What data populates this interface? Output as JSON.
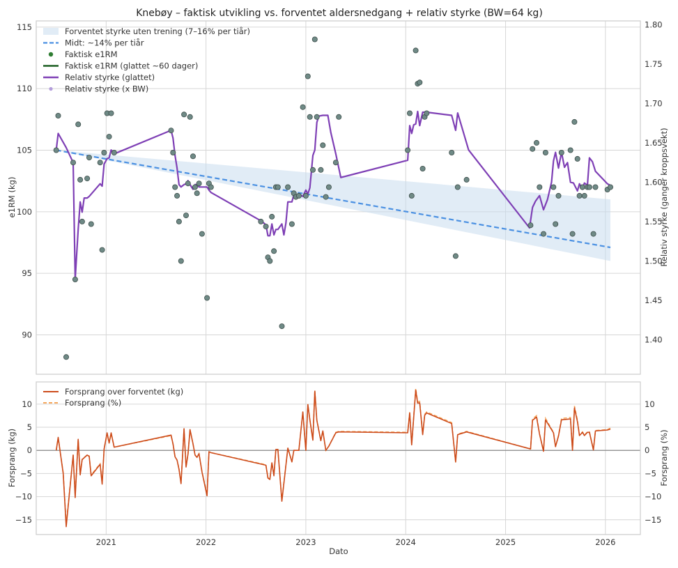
{
  "title": "Knebøy – faktisk utvikling vs. forventet aldersnedgang + relativ styrke (BW=64 kg)",
  "chart_data": [
    {
      "type": "line",
      "panel": "top",
      "xlabel": "",
      "ylabel": "e1RM (kg)",
      "ylabel_right": "Relativ styrke (ganger kroppsvekt)",
      "body_weight_kg": 64,
      "xlim": [
        2020.3,
        2026.35
      ],
      "ylim": [
        86.8,
        115.5
      ],
      "ylim_right": [
        1.356,
        1.805
      ],
      "yticks": [
        90,
        95,
        100,
        105,
        110,
        115
      ],
      "yticks_right": [
        1.4,
        1.45,
        1.5,
        1.55,
        1.6,
        1.65,
        1.7,
        1.75,
        1.8
      ],
      "ytick_labels_right": [
        "1.40",
        "1.45",
        "1.50",
        "1.55",
        "1.60",
        "1.65",
        "1.70",
        "1.75",
        "1.80"
      ],
      "grid": true,
      "legend_position": "upper-left",
      "legend": [
        "Forventet styrke uten trening (7–16% per tiår)",
        "Midt: ~14% per tiår",
        "Faktisk e1RM",
        "Faktisk e1RM (glattet ~60 dager)",
        "Relativ styrke (glattet)",
        "Relativ styrke (x BW)"
      ],
      "colors": {
        "band": "#c8dcef",
        "mid": "#4a90e2",
        "points": "#6f8a86",
        "points_legend": "#2e7d32",
        "smoothed_e1rm": "#1b5e20",
        "relative": "#7e3fb5",
        "relative_points": "#b39ddb"
      },
      "band": {
        "x": [
          2020.5,
          2026.05
        ],
        "upper": [
          105.0,
          101.0
        ],
        "lower": [
          105.0,
          96.0
        ]
      },
      "mid": {
        "x": [
          2020.5,
          2026.05
        ],
        "y": [
          105.0,
          97.1
        ]
      },
      "points": {
        "x": [
          2020.5,
          2020.52,
          2020.6,
          2020.67,
          2020.69,
          2020.72,
          2020.74,
          2020.76,
          2020.81,
          2020.83,
          2020.85,
          2020.94,
          2020.96,
          2020.98,
          2021.01,
          2021.03,
          2021.05,
          2021.08,
          2021.65,
          2021.67,
          2021.69,
          2021.71,
          2021.73,
          2021.75,
          2021.78,
          2021.8,
          2021.82,
          2021.84,
          2021.87,
          2021.89,
          2021.91,
          2021.93,
          2021.96,
          2022.01,
          2022.03,
          2022.05,
          2022.55,
          2022.6,
          2022.62,
          2022.64,
          2022.66,
          2022.68,
          2022.7,
          2022.72,
          2022.76,
          2022.82,
          2022.86,
          2022.88,
          2022.9,
          2022.93,
          2022.97,
          2023.0,
          2023.02,
          2023.04,
          2023.07,
          2023.09,
          2023.11,
          2023.15,
          2023.17,
          2023.2,
          2023.23,
          2023.3,
          2023.33,
          2024.02,
          2024.04,
          2024.06,
          2024.1,
          2024.12,
          2024.14,
          2024.17,
          2024.19,
          2024.21,
          2024.46,
          2024.5,
          2024.52,
          2024.61,
          2025.25,
          2025.27,
          2025.31,
          2025.34,
          2025.38,
          2025.4,
          2025.48,
          2025.5,
          2025.53,
          2025.56,
          2025.65,
          2025.67,
          2025.69,
          2025.72,
          2025.74,
          2025.77,
          2025.79,
          2025.82,
          2025.84,
          2025.88,
          2025.9,
          2026.02,
          2026.05
        ],
        "y": [
          105.0,
          107.8,
          88.2,
          104.0,
          94.5,
          107.1,
          102.6,
          99.2,
          102.7,
          104.4,
          99.0,
          104.0,
          96.9,
          104.8,
          108.0,
          106.1,
          108.0,
          104.8,
          106.6,
          104.8,
          102.0,
          101.3,
          99.2,
          96.0,
          107.9,
          99.7,
          102.3,
          107.7,
          104.5,
          102.0,
          101.5,
          102.3,
          98.2,
          93.0,
          102.3,
          102.0,
          99.2,
          98.8,
          96.3,
          96.0,
          99.6,
          96.8,
          102.0,
          102.0,
          90.7,
          102.0,
          99.0,
          101.5,
          101.2,
          101.3,
          108.5,
          101.3,
          111.0,
          107.7,
          103.4,
          114.0,
          107.7,
          103.4,
          105.4,
          101.2,
          102.0,
          104.0,
          107.7,
          105.0,
          108.0,
          101.3,
          113.1,
          110.4,
          110.5,
          103.5,
          107.7,
          108.0,
          104.8,
          96.4,
          102.0,
          102.6,
          98.9,
          105.1,
          105.6,
          102.0,
          98.2,
          104.8,
          102.0,
          99.0,
          101.3,
          104.8,
          105.0,
          98.2,
          107.3,
          104.3,
          101.3,
          102.0,
          101.3,
          102.0,
          102.0,
          98.2,
          102.0,
          101.8,
          102.0
        ]
      },
      "relative_smoothed": {
        "x": [
          2020.5,
          2020.52,
          2020.6,
          2020.67,
          2020.69,
          2020.72,
          2020.74,
          2020.76,
          2020.78,
          2020.81,
          2020.83,
          2020.94,
          2020.96,
          2020.98,
          2021.01,
          2021.03,
          2021.05,
          2021.08,
          2021.65,
          2021.67,
          2021.69,
          2021.71,
          2021.73,
          2021.75,
          2021.78,
          2021.8,
          2021.82,
          2021.84,
          2021.87,
          2021.89,
          2021.91,
          2021.93,
          2021.96,
          2022.01,
          2022.03,
          2022.05,
          2022.55,
          2022.6,
          2022.62,
          2022.64,
          2022.66,
          2022.68,
          2022.7,
          2022.72,
          2022.76,
          2022.78,
          2022.8,
          2022.82,
          2022.86,
          2022.88,
          2022.9,
          2022.93,
          2022.97,
          2023.0,
          2023.02,
          2023.04,
          2023.07,
          2023.09,
          2023.11,
          2023.13,
          2023.17,
          2023.22,
          2023.25,
          2023.3,
          2023.35,
          2024.02,
          2024.04,
          2024.06,
          2024.08,
          2024.1,
          2024.12,
          2024.14,
          2024.17,
          2024.21,
          2024.46,
          2024.5,
          2024.52,
          2024.63,
          2025.24,
          2025.27,
          2025.3,
          2025.34,
          2025.38,
          2025.42,
          2025.46,
          2025.48,
          2025.5,
          2025.53,
          2025.56,
          2025.59,
          2025.62,
          2025.65,
          2025.68,
          2025.72,
          2025.74,
          2025.77,
          2025.79,
          2025.82,
          2025.84,
          2025.87,
          2025.9,
          2026.02,
          2026.05
        ],
        "y": [
          1.641,
          1.662,
          1.644,
          1.625,
          1.477,
          1.54,
          1.575,
          1.562,
          1.58,
          1.58,
          1.582,
          1.598,
          1.595,
          1.623,
          1.63,
          1.631,
          1.641,
          1.636,
          1.666,
          1.656,
          1.634,
          1.618,
          1.597,
          1.594,
          1.597,
          1.598,
          1.602,
          1.597,
          1.591,
          1.597,
          1.597,
          1.594,
          1.594,
          1.594,
          1.59,
          1.587,
          1.551,
          1.546,
          1.532,
          1.532,
          1.547,
          1.533,
          1.54,
          1.54,
          1.547,
          1.533,
          1.548,
          1.575,
          1.575,
          1.584,
          1.582,
          1.585,
          1.582,
          1.59,
          1.585,
          1.593,
          1.634,
          1.641,
          1.676,
          1.684,
          1.685,
          1.685,
          1.663,
          1.636,
          1.606,
          1.628,
          1.672,
          1.662,
          1.673,
          1.674,
          1.69,
          1.672,
          1.689,
          1.689,
          1.685,
          1.666,
          1.688,
          1.641,
          1.542,
          1.568,
          1.576,
          1.583,
          1.565,
          1.578,
          1.6,
          1.627,
          1.638,
          1.618,
          1.638,
          1.619,
          1.625,
          1.6,
          1.599,
          1.589,
          1.598,
          1.591,
          1.599,
          1.596,
          1.631,
          1.626,
          1.614,
          1.598,
          1.596
        ]
      }
    },
    {
      "type": "line",
      "panel": "bottom",
      "xlabel": "Dato",
      "ylabel": "Forsprang (kg)",
      "ylabel_right": "Forsprang (%)",
      "xlim": [
        2020.3,
        2026.35
      ],
      "ylim": [
        -18.2,
        14.8
      ],
      "ylim_right": [
        -18.2,
        14.8
      ],
      "yticks": [
        -15,
        -10,
        -5,
        0,
        5,
        10
      ],
      "yticks_right": [
        -15,
        -10,
        -5,
        0,
        5,
        10
      ],
      "xticks": [
        2021,
        2022,
        2023,
        2024,
        2025,
        2026
      ],
      "xtick_labels": [
        "2021",
        "2022",
        "2023",
        "2024",
        "2025",
        "2026"
      ],
      "grid": true,
      "legend_position": "upper-left",
      "legend": [
        "Forsprang over forventet (kg)",
        "Forsprang (%)"
      ],
      "colors": {
        "kg": "#cc4a1a",
        "pct": "#f5a65b",
        "zero": "#888888"
      },
      "series": [
        {
          "name": "Forsprang over forventet (kg)",
          "x": [
            2020.5,
            2020.52,
            2020.57,
            2020.6,
            2020.67,
            2020.69,
            2020.72,
            2020.74,
            2020.76,
            2020.81,
            2020.83,
            2020.85,
            2020.94,
            2020.96,
            2020.98,
            2021.01,
            2021.03,
            2021.05,
            2021.08,
            2021.65,
            2021.67,
            2021.69,
            2021.71,
            2021.73,
            2021.75,
            2021.78,
            2021.8,
            2021.82,
            2021.84,
            2021.87,
            2021.89,
            2021.91,
            2021.93,
            2021.96,
            2022.01,
            2022.03,
            2022.05,
            2022.6,
            2022.62,
            2022.64,
            2022.66,
            2022.68,
            2022.7,
            2022.72,
            2022.76,
            2022.82,
            2022.86,
            2022.88,
            2022.9,
            2022.93,
            2022.97,
            2023.0,
            2023.02,
            2023.04,
            2023.07,
            2023.09,
            2023.11,
            2023.15,
            2023.17,
            2023.2,
            2023.23,
            2023.3,
            2023.33,
            2024.02,
            2024.04,
            2024.06,
            2024.1,
            2024.12,
            2024.14,
            2024.17,
            2024.19,
            2024.21,
            2024.46,
            2024.5,
            2024.52,
            2024.61,
            2025.25,
            2025.27,
            2025.31,
            2025.34,
            2025.38,
            2025.4,
            2025.48,
            2025.5,
            2025.53,
            2025.56,
            2025.65,
            2025.67,
            2025.69,
            2025.72,
            2025.74,
            2025.77,
            2025.79,
            2025.82,
            2025.84,
            2025.88,
            2025.9,
            2026.02,
            2026.05
          ],
          "values": [
            0.0,
            2.8,
            -5.0,
            -16.5,
            -1.0,
            -10.2,
            2.4,
            -5.3,
            -2.0,
            -1.0,
            -1.3,
            -5.5,
            -3.0,
            -7.3,
            0.3,
            3.8,
            1.6,
            3.8,
            0.7,
            3.3,
            1.4,
            -1.4,
            -2.1,
            -4.1,
            -7.2,
            4.7,
            -3.6,
            -0.8,
            4.5,
            1.4,
            -1.0,
            -1.5,
            -0.7,
            -4.7,
            -9.8,
            -0.3,
            -0.5,
            -3.2,
            -6.0,
            -6.3,
            -2.7,
            -5.5,
            0.2,
            0.2,
            -11.0,
            0.5,
            -2.5,
            0.0,
            0.0,
            0.0,
            8.3,
            0.0,
            9.9,
            6.6,
            2.2,
            12.8,
            6.5,
            2.1,
            4.2,
            0.0,
            0.9,
            3.8,
            4.0,
            3.8,
            8.1,
            1.2,
            13.0,
            10.2,
            10.3,
            3.4,
            7.6,
            8.1,
            5.8,
            -2.5,
            3.4,
            4.0,
            0.3,
            6.5,
            7.2,
            3.5,
            -0.2,
            6.6,
            3.8,
            0.8,
            3.1,
            6.6,
            6.8,
            0.0,
            9.2,
            6.2,
            3.2,
            3.9,
            3.2,
            3.9,
            3.9,
            0.1,
            4.2,
            4.4,
            4.6
          ]
        },
        {
          "name": "Forsprang (%)",
          "x": [
            2020.5,
            2020.52,
            2020.57,
            2020.6,
            2020.67,
            2020.69,
            2020.72,
            2020.74,
            2020.76,
            2020.81,
            2020.83,
            2020.85,
            2020.94,
            2020.96,
            2020.98,
            2021.01,
            2021.03,
            2021.05,
            2021.08,
            2021.65,
            2021.67,
            2021.69,
            2021.71,
            2021.73,
            2021.75,
            2021.78,
            2021.8,
            2021.82,
            2021.84,
            2021.87,
            2021.89,
            2021.91,
            2021.93,
            2021.96,
            2022.01,
            2022.03,
            2022.05,
            2022.6,
            2022.62,
            2022.64,
            2022.66,
            2022.68,
            2022.7,
            2022.72,
            2022.76,
            2022.82,
            2022.86,
            2022.88,
            2022.9,
            2022.93,
            2022.97,
            2023.0,
            2023.02,
            2023.04,
            2023.07,
            2023.09,
            2023.11,
            2023.15,
            2023.17,
            2023.2,
            2023.23,
            2023.3,
            2023.33,
            2024.02,
            2024.04,
            2024.06,
            2024.1,
            2024.12,
            2024.14,
            2024.17,
            2024.19,
            2024.21,
            2024.46,
            2024.5,
            2024.52,
            2024.61,
            2025.25,
            2025.27,
            2025.31,
            2025.34,
            2025.38,
            2025.4,
            2025.48,
            2025.5,
            2025.53,
            2025.56,
            2025.65,
            2025.67,
            2025.69,
            2025.72,
            2025.74,
            2025.77,
            2025.79,
            2025.82,
            2025.84,
            2025.88,
            2025.9,
            2026.02,
            2026.05
          ],
          "values": [
            0.0,
            2.7,
            -4.8,
            -16.0,
            -1.0,
            -9.8,
            2.3,
            -5.1,
            -1.9,
            -1.0,
            -1.2,
            -5.3,
            -2.9,
            -7.0,
            0.3,
            3.6,
            1.5,
            3.6,
            0.7,
            3.2,
            1.3,
            -1.4,
            -2.1,
            -4.0,
            -7.0,
            4.6,
            -3.5,
            -0.8,
            4.4,
            1.4,
            -1.0,
            -1.5,
            -0.7,
            -4.6,
            -9.5,
            -0.3,
            -0.5,
            -3.1,
            -5.9,
            -6.2,
            -2.6,
            -5.4,
            0.2,
            0.2,
            -10.8,
            0.5,
            -2.5,
            0.0,
            0.0,
            0.0,
            8.3,
            0.0,
            10.0,
            6.6,
            2.2,
            13.0,
            6.6,
            2.1,
            4.2,
            0.0,
            0.9,
            3.9,
            4.1,
            3.9,
            8.3,
            1.2,
            13.4,
            10.5,
            10.6,
            3.5,
            7.8,
            8.3,
            6.0,
            -2.6,
            3.5,
            4.1,
            0.3,
            6.8,
            7.5,
            3.6,
            -0.2,
            6.9,
            3.9,
            0.8,
            3.2,
            6.9,
            7.1,
            0.0,
            9.6,
            6.5,
            3.3,
            4.0,
            3.3,
            4.0,
            4.0,
            0.1,
            4.3,
            4.5,
            4.8
          ]
        }
      ]
    }
  ]
}
